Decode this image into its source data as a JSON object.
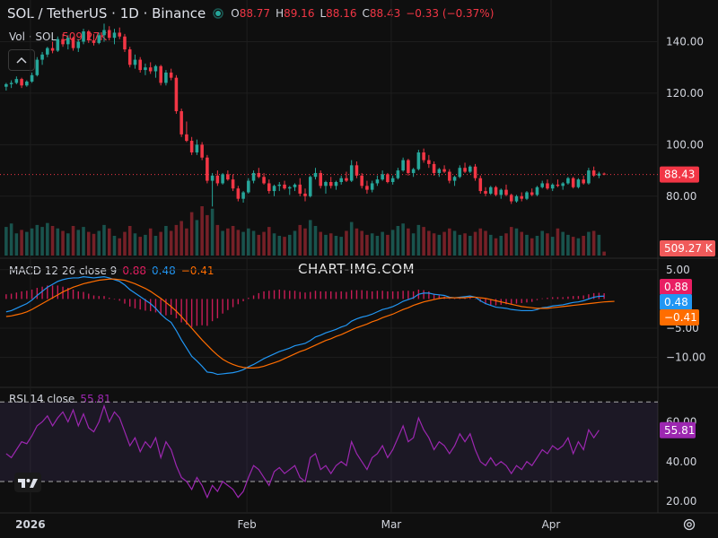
{
  "header": {
    "symbol_line": "SOL / TetherUS · 1D · Binance",
    "o_label": "O",
    "o_value": "88.77",
    "h_label": "H",
    "h_value": "89.16",
    "l_label": "L",
    "l_value": "88.16",
    "c_label": "C",
    "c_value": "88.43",
    "change": "−0.33 (−0.37%)",
    "status_color": "#26a69a"
  },
  "volume_legend": {
    "label": "Vol · SOL",
    "value": "509.27K"
  },
  "macd_legend": {
    "label": "MACD 12 26 close 9",
    "hist": "0.88",
    "macd": "0.48",
    "signal": "−0.41"
  },
  "rsi_legend": {
    "label": "RSI 14 close",
    "value": "55.81"
  },
  "watermark": "CHART-IMG.COM",
  "price_tags": {
    "last_price": "88.43",
    "volume": "509.27 K",
    "macd_hist": "0.88",
    "macd": "0.48",
    "signal": "−0.41",
    "rsi": "55.81"
  },
  "colors": {
    "up": "#26a69a",
    "down": "#f23645",
    "macd": "#2196f3",
    "signal": "#ff6d00",
    "hist": "#e91e63",
    "rsi": "#9c27b0",
    "background": "#0f0f0f"
  },
  "chart_data": [
    {
      "type": "candlestick",
      "x_ticks": [
        "2026",
        "Feb",
        "Mar",
        "Apr"
      ],
      "y_ticks": [
        "140.00",
        "120.00",
        "100.00",
        "80.00"
      ],
      "ylim": [
        58,
        152
      ],
      "last_price": 88.43,
      "ohlc": [
        [
          122.5,
          124.0,
          121.0,
          123.5
        ],
        [
          123.5,
          125.0,
          122.0,
          124.0
        ],
        [
          124.0,
          126.5,
          123.5,
          125.5
        ],
        [
          125.5,
          126.0,
          122.0,
          123.0
        ],
        [
          123.0,
          125.0,
          122.5,
          124.5
        ],
        [
          124.5,
          128.0,
          124.0,
          127.0
        ],
        [
          127.0,
          134.0,
          126.5,
          133.0
        ],
        [
          133.0,
          136.0,
          131.0,
          135.0
        ],
        [
          135.0,
          138.0,
          134.0,
          137.5
        ],
        [
          137.5,
          140.0,
          135.5,
          136.5
        ],
        [
          136.5,
          142.0,
          136.0,
          141.0
        ],
        [
          141.0,
          143.0,
          138.0,
          139.0
        ],
        [
          139.0,
          142.5,
          137.0,
          141.5
        ],
        [
          141.5,
          142.0,
          136.5,
          137.5
        ],
        [
          137.5,
          141.0,
          136.0,
          140.0
        ],
        [
          140.0,
          145.0,
          139.0,
          144.0
        ],
        [
          144.0,
          144.5,
          139.5,
          140.5
        ],
        [
          140.5,
          143.0,
          138.5,
          139.5
        ],
        [
          139.5,
          143.5,
          139.0,
          142.5
        ],
        [
          142.5,
          147.0,
          140.0,
          144.5
        ],
        [
          144.5,
          146.0,
          140.5,
          141.5
        ],
        [
          141.5,
          145.0,
          139.0,
          143.5
        ],
        [
          143.5,
          145.5,
          141.0,
          142.0
        ],
        [
          142.0,
          143.0,
          136.0,
          137.0
        ],
        [
          137.0,
          138.0,
          130.0,
          131.0
        ],
        [
          131.0,
          135.0,
          129.5,
          133.0
        ],
        [
          133.0,
          134.0,
          128.0,
          129.0
        ],
        [
          129.0,
          131.5,
          127.0,
          130.0
        ],
        [
          130.0,
          132.0,
          127.5,
          128.5
        ],
        [
          128.5,
          131.0,
          126.0,
          130.5
        ],
        [
          130.5,
          131.0,
          123.0,
          124.0
        ],
        [
          124.0,
          129.0,
          123.0,
          128.0
        ],
        [
          128.0,
          129.5,
          125.0,
          126.0
        ],
        [
          126.0,
          127.0,
          112.0,
          113.0
        ],
        [
          113.0,
          114.0,
          103.0,
          104.0
        ],
        [
          104.0,
          109.0,
          101.0,
          101.5
        ],
        [
          101.5,
          103.0,
          96.0,
          97.0
        ],
        [
          97.0,
          102.0,
          96.0,
          100.0
        ],
        [
          100.0,
          101.0,
          94.0,
          95.0
        ],
        [
          95.0,
          96.0,
          85.0,
          86.0
        ],
        [
          86.0,
          89.0,
          76.0,
          88.0
        ],
        [
          88.0,
          90.0,
          84.0,
          85.0
        ],
        [
          85.0,
          89.0,
          84.5,
          88.5
        ],
        [
          88.5,
          90.0,
          86.0,
          86.5
        ],
        [
          86.5,
          88.5,
          82.0,
          83.0
        ],
        [
          83.0,
          84.0,
          78.0,
          79.0
        ],
        [
          79.0,
          82.0,
          77.5,
          81.5
        ],
        [
          81.5,
          87.0,
          81.0,
          86.0
        ],
        [
          86.0,
          90.0,
          85.0,
          89.0
        ],
        [
          89.0,
          91.0,
          87.0,
          87.5
        ],
        [
          87.5,
          89.0,
          84.5,
          85.0
        ],
        [
          85.0,
          86.5,
          81.0,
          82.0
        ],
        [
          82.0,
          84.5,
          80.0,
          84.0
        ],
        [
          84.0,
          85.5,
          82.0,
          84.5
        ],
        [
          84.5,
          86.0,
          82.5,
          83.0
        ],
        [
          83.0,
          84.0,
          80.5,
          83.5
        ],
        [
          83.5,
          85.0,
          82.0,
          84.5
        ],
        [
          84.5,
          87.0,
          80.0,
          81.0
        ],
        [
          81.0,
          83.0,
          78.0,
          80.0
        ],
        [
          80.0,
          88.0,
          79.5,
          87.5
        ],
        [
          87.5,
          91.0,
          86.5,
          89.0
        ],
        [
          89.0,
          90.0,
          83.0,
          84.0
        ],
        [
          84.0,
          86.0,
          81.0,
          85.5
        ],
        [
          85.5,
          87.5,
          83.0,
          84.0
        ],
        [
          84.0,
          86.0,
          82.5,
          85.5
        ],
        [
          85.5,
          88.0,
          84.5,
          87.0
        ],
        [
          87.0,
          89.5,
          85.5,
          86.0
        ],
        [
          86.0,
          94.0,
          85.5,
          92.0
        ],
        [
          92.0,
          93.5,
          87.0,
          88.0
        ],
        [
          88.0,
          89.0,
          83.0,
          84.0
        ],
        [
          84.0,
          86.0,
          81.0,
          82.5
        ],
        [
          82.5,
          86.0,
          81.5,
          85.0
        ],
        [
          85.0,
          88.0,
          84.0,
          86.5
        ],
        [
          86.5,
          90.0,
          86.0,
          88.5
        ],
        [
          88.5,
          89.0,
          85.0,
          85.5
        ],
        [
          85.5,
          88.0,
          84.5,
          87.0
        ],
        [
          87.0,
          91.0,
          86.5,
          90.0
        ],
        [
          90.0,
          95.0,
          89.5,
          94.0
        ],
        [
          94.0,
          94.5,
          88.0,
          89.0
        ],
        [
          89.0,
          91.0,
          87.5,
          90.5
        ],
        [
          90.5,
          98.0,
          90.0,
          97.0
        ],
        [
          97.0,
          98.5,
          93.0,
          94.0
        ],
        [
          94.0,
          96.0,
          91.0,
          92.5
        ],
        [
          92.5,
          93.5,
          88.0,
          89.0
        ],
        [
          89.0,
          91.0,
          87.5,
          90.5
        ],
        [
          90.5,
          92.0,
          89.0,
          89.5
        ],
        [
          89.5,
          90.5,
          85.0,
          86.0
        ],
        [
          86.0,
          88.0,
          84.0,
          87.5
        ],
        [
          87.5,
          92.0,
          87.0,
          91.0
        ],
        [
          91.0,
          93.0,
          89.0,
          89.5
        ],
        [
          89.5,
          92.0,
          89.0,
          91.5
        ],
        [
          91.5,
          92.5,
          86.0,
          87.0
        ],
        [
          87.0,
          88.0,
          81.0,
          82.0
        ],
        [
          82.0,
          83.5,
          80.0,
          81.0
        ],
        [
          81.0,
          84.0,
          80.5,
          83.5
        ],
        [
          83.5,
          84.0,
          80.0,
          80.5
        ],
        [
          80.5,
          83.0,
          79.0,
          82.5
        ],
        [
          82.5,
          84.5,
          80.0,
          80.5
        ],
        [
          80.5,
          81.0,
          77.0,
          78.0
        ],
        [
          78.0,
          80.5,
          77.5,
          80.0
        ],
        [
          80.0,
          81.5,
          78.0,
          79.0
        ],
        [
          79.0,
          82.0,
          78.5,
          81.5
        ],
        [
          81.5,
          83.0,
          80.0,
          80.5
        ],
        [
          80.5,
          84.0,
          80.0,
          83.5
        ],
        [
          83.5,
          86.0,
          83.0,
          85.0
        ],
        [
          85.0,
          86.5,
          82.5,
          83.0
        ],
        [
          83.0,
          85.0,
          82.0,
          84.5
        ],
        [
          84.5,
          86.5,
          83.5,
          84.0
        ],
        [
          84.0,
          85.5,
          82.5,
          85.0
        ],
        [
          85.0,
          87.5,
          84.5,
          87.0
        ],
        [
          87.0,
          87.5,
          83.0,
          83.5
        ],
        [
          83.5,
          87.0,
          83.0,
          86.5
        ],
        [
          86.5,
          88.0,
          84.5,
          85.0
        ],
        [
          85.0,
          91.0,
          84.5,
          90.0
        ],
        [
          90.0,
          91.5,
          87.5,
          88.0
        ],
        [
          88.0,
          89.5,
          87.0,
          88.77
        ],
        [
          88.77,
          89.16,
          88.16,
          88.43
        ]
      ]
    },
    {
      "type": "bar",
      "series_label": "Vol · SOL",
      "last": 509.27,
      "values": [
        0.58,
        0.65,
        0.45,
        0.52,
        0.48,
        0.55,
        0.62,
        0.58,
        0.66,
        0.6,
        0.55,
        0.5,
        0.45,
        0.6,
        0.52,
        0.58,
        0.48,
        0.44,
        0.5,
        0.62,
        0.55,
        0.4,
        0.35,
        0.48,
        0.6,
        0.45,
        0.38,
        0.42,
        0.55,
        0.4,
        0.48,
        0.6,
        0.5,
        0.62,
        0.7,
        0.55,
        0.88,
        0.72,
        1.0,
        0.82,
        0.95,
        0.62,
        0.5,
        0.55,
        0.6,
        0.52,
        0.48,
        0.55,
        0.5,
        0.42,
        0.48,
        0.58,
        0.45,
        0.4,
        0.38,
        0.42,
        0.5,
        0.62,
        0.55,
        0.72,
        0.6,
        0.48,
        0.42,
        0.45,
        0.4,
        0.38,
        0.5,
        0.68,
        0.55,
        0.5,
        0.42,
        0.45,
        0.4,
        0.48,
        0.42,
        0.52,
        0.6,
        0.65,
        0.55,
        0.45,
        0.62,
        0.58,
        0.5,
        0.45,
        0.42,
        0.48,
        0.55,
        0.5,
        0.42,
        0.45,
        0.4,
        0.48,
        0.55,
        0.5,
        0.42,
        0.35,
        0.4,
        0.45,
        0.58,
        0.55,
        0.48,
        0.42,
        0.35,
        0.4,
        0.5,
        0.45,
        0.38,
        0.55,
        0.48,
        0.42,
        0.38,
        0.35,
        0.4,
        0.48,
        0.5,
        0.42,
        0.08
      ]
    },
    {
      "type": "line",
      "series_label": "MACD 12 26 close 9",
      "y_ticks": [
        "5.00",
        "−5.00",
        "−10.00"
      ],
      "ylim": [
        -14.5,
        6.5
      ],
      "series": [
        {
          "name": "MACD",
          "values": [
            -2.2,
            -2.0,
            -1.6,
            -1.2,
            -0.8,
            -0.2,
            0.6,
            1.3,
            2.0,
            2.5,
            3.0,
            3.3,
            3.5,
            3.6,
            3.6,
            3.8,
            3.7,
            3.6,
            3.7,
            3.8,
            3.6,
            3.3,
            3.0,
            2.4,
            1.6,
            1.0,
            0.4,
            -0.2,
            -0.8,
            -1.6,
            -2.6,
            -3.4,
            -4.0,
            -5.4,
            -7.0,
            -8.4,
            -9.8,
            -10.6,
            -11.5,
            -12.5,
            -12.6,
            -12.9,
            -12.8,
            -12.7,
            -12.6,
            -12.4,
            -12.1,
            -11.6,
            -11.2,
            -10.7,
            -10.2,
            -9.8,
            -9.4,
            -9.0,
            -8.7,
            -8.4,
            -8.0,
            -7.8,
            -7.6,
            -7.1,
            -6.5,
            -6.2,
            -5.8,
            -5.5,
            -5.2,
            -4.8,
            -4.5,
            -3.8,
            -3.4,
            -3.1,
            -2.9,
            -2.6,
            -2.2,
            -1.8,
            -1.6,
            -1.3,
            -0.9,
            -0.4,
            -0.1,
            0.2,
            0.8,
            1.0,
            1.0,
            0.8,
            0.7,
            0.6,
            0.3,
            0.2,
            0.3,
            0.4,
            0.5,
            0.3,
            -0.3,
            -0.8,
            -1.1,
            -1.4,
            -1.5,
            -1.6,
            -1.8,
            -1.9,
            -2.0,
            -2.0,
            -2.0,
            -1.8,
            -1.5,
            -1.4,
            -1.2,
            -1.1,
            -1.0,
            -0.8,
            -0.6,
            -0.5,
            -0.3,
            0.0,
            0.3,
            0.45,
            0.48
          ]
        },
        {
          "name": "Signal",
          "values": [
            -3.0,
            -2.9,
            -2.7,
            -2.5,
            -2.2,
            -1.8,
            -1.3,
            -0.8,
            -0.3,
            0.2,
            0.7,
            1.2,
            1.6,
            2.0,
            2.3,
            2.6,
            2.8,
            3.0,
            3.2,
            3.3,
            3.4,
            3.4,
            3.3,
            3.2,
            2.9,
            2.6,
            2.2,
            1.8,
            1.3,
            0.7,
            0.1,
            -0.6,
            -1.3,
            -2.1,
            -3.0,
            -4.0,
            -5.0,
            -6.0,
            -7.0,
            -7.9,
            -8.8,
            -9.6,
            -10.3,
            -10.8,
            -11.2,
            -11.5,
            -11.7,
            -11.8,
            -11.8,
            -11.7,
            -11.5,
            -11.2,
            -10.9,
            -10.6,
            -10.2,
            -9.8,
            -9.4,
            -9.0,
            -8.7,
            -8.3,
            -7.9,
            -7.5,
            -7.1,
            -6.8,
            -6.4,
            -6.1,
            -5.7,
            -5.3,
            -4.9,
            -4.6,
            -4.3,
            -3.9,
            -3.6,
            -3.2,
            -2.9,
            -2.6,
            -2.2,
            -1.8,
            -1.5,
            -1.1,
            -0.8,
            -0.5,
            -0.3,
            -0.1,
            0.1,
            0.2,
            0.2,
            0.2,
            0.2,
            0.2,
            0.3,
            0.3,
            0.2,
            0.1,
            -0.1,
            -0.3,
            -0.5,
            -0.7,
            -0.9,
            -1.1,
            -1.3,
            -1.4,
            -1.5,
            -1.6,
            -1.6,
            -1.6,
            -1.5,
            -1.4,
            -1.3,
            -1.2,
            -1.1,
            -1.0,
            -0.9,
            -0.8,
            -0.7,
            -0.6,
            -0.5,
            -0.45,
            -0.41
          ]
        }
      ]
    },
    {
      "type": "line",
      "series_label": "RSI 14 close",
      "y_ticks": [
        "60.00",
        "40.00",
        "20.00"
      ],
      "ylim": [
        16,
        76
      ],
      "bands": [
        30,
        70
      ],
      "values": [
        44,
        42,
        46,
        50,
        49,
        53,
        58,
        60,
        63,
        58,
        62,
        65,
        60,
        66,
        58,
        64,
        57,
        55,
        60,
        68,
        60,
        65,
        62,
        55,
        48,
        52,
        45,
        50,
        47,
        52,
        42,
        50,
        46,
        38,
        32,
        30,
        26,
        32,
        28,
        22,
        28,
        25,
        30,
        28,
        26,
        22,
        25,
        32,
        38,
        36,
        32,
        28,
        35,
        37,
        34,
        36,
        38,
        32,
        30,
        42,
        44,
        36,
        38,
        34,
        38,
        40,
        38,
        50,
        44,
        40,
        36,
        42,
        44,
        48,
        42,
        46,
        52,
        58,
        50,
        52,
        62,
        56,
        52,
        46,
        50,
        48,
        44,
        48,
        54,
        50,
        54,
        46,
        40,
        38,
        42,
        38,
        40,
        38,
        34,
        38,
        36,
        40,
        38,
        42,
        46,
        44,
        48,
        46,
        48,
        52,
        44,
        50,
        46,
        56,
        52,
        55.81
      ]
    }
  ]
}
